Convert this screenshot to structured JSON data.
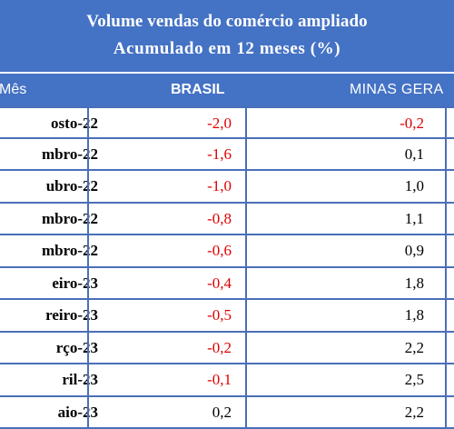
{
  "header": {
    "title": "Volume vendas do comércio ampliado",
    "subtitle": "Acumulado em 12 meses (%)"
  },
  "columns": {
    "mes": "Mês",
    "brasil": "BRASIL",
    "minas": "MINAS GERA"
  },
  "rows": [
    {
      "mes": "osto-22",
      "brasil": "-2,0",
      "minas": "-0,2"
    },
    {
      "mes": "mbro-22",
      "brasil": "-1,6",
      "minas": "0,1"
    },
    {
      "mes": "ubro-22",
      "brasil": "-1,0",
      "minas": "1,0"
    },
    {
      "mes": "mbro-22",
      "brasil": "-0,8",
      "minas": "1,1"
    },
    {
      "mes": "mbro-22",
      "brasil": "-0,6",
      "minas": "0,9"
    },
    {
      "mes": "eiro-23",
      "brasil": "-0,4",
      "minas": "1,8"
    },
    {
      "mes": "reiro-23",
      "brasil": "-0,5",
      "minas": "1,8"
    },
    {
      "mes": "rço-23",
      "brasil": "-0,2",
      "minas": "2,2"
    },
    {
      "mes": "ril-23",
      "brasil": "-0,1",
      "minas": "2,5"
    },
    {
      "mes": "aio-23",
      "brasil": "0,2",
      "minas": "2,2"
    }
  ],
  "colors": {
    "header_bg": "#4472c4",
    "negative": "#e00000",
    "grid": "#4a6fb8"
  }
}
